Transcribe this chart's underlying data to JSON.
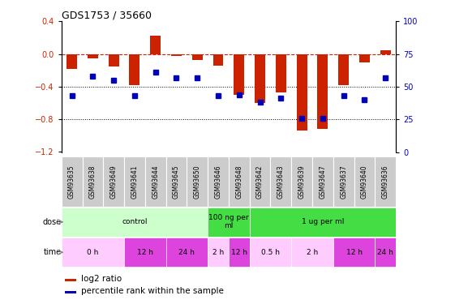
{
  "title": "GDS1753 / 35660",
  "samples": [
    "GSM93635",
    "GSM93638",
    "GSM93649",
    "GSM93641",
    "GSM93644",
    "GSM93645",
    "GSM93650",
    "GSM93646",
    "GSM93648",
    "GSM93642",
    "GSM93643",
    "GSM93639",
    "GSM93647",
    "GSM93637",
    "GSM93640",
    "GSM93636"
  ],
  "log2_ratio": [
    -0.18,
    -0.05,
    -0.15,
    -0.38,
    0.22,
    -0.02,
    -0.07,
    -0.14,
    -0.5,
    -0.6,
    -0.47,
    -0.94,
    -0.92,
    -0.38,
    -0.1,
    0.05
  ],
  "percentile": [
    43,
    58,
    55,
    43,
    61,
    57,
    57,
    43,
    44,
    38,
    41,
    26,
    26,
    43,
    40,
    57
  ],
  "bar_color": "#cc2200",
  "dot_color": "#0000bb",
  "dose_labels": [
    {
      "label": "control",
      "start": 0,
      "end": 7,
      "color": "#ccffcc"
    },
    {
      "label": "100 ng per\nml",
      "start": 7,
      "end": 9,
      "color": "#44dd44"
    },
    {
      "label": "1 ug per ml",
      "start": 9,
      "end": 16,
      "color": "#44dd44"
    }
  ],
  "time_labels": [
    {
      "label": "0 h",
      "start": 0,
      "end": 3,
      "color": "#ffccff"
    },
    {
      "label": "12 h",
      "start": 3,
      "end": 5,
      "color": "#dd44dd"
    },
    {
      "label": "24 h",
      "start": 5,
      "end": 7,
      "color": "#dd44dd"
    },
    {
      "label": "2 h",
      "start": 7,
      "end": 8,
      "color": "#ffccff"
    },
    {
      "label": "12 h",
      "start": 8,
      "end": 9,
      "color": "#dd44dd"
    },
    {
      "label": "0.5 h",
      "start": 9,
      "end": 11,
      "color": "#ffccff"
    },
    {
      "label": "2 h",
      "start": 11,
      "end": 13,
      "color": "#ffccff"
    },
    {
      "label": "12 h",
      "start": 13,
      "end": 15,
      "color": "#dd44dd"
    },
    {
      "label": "24 h",
      "start": 15,
      "end": 16,
      "color": "#dd44dd"
    }
  ],
  "dose_row_label": "dose",
  "time_row_label": "time",
  "legend1": "log2 ratio",
  "legend2": "percentile rank within the sample",
  "tick_bg_color": "#cccccc"
}
